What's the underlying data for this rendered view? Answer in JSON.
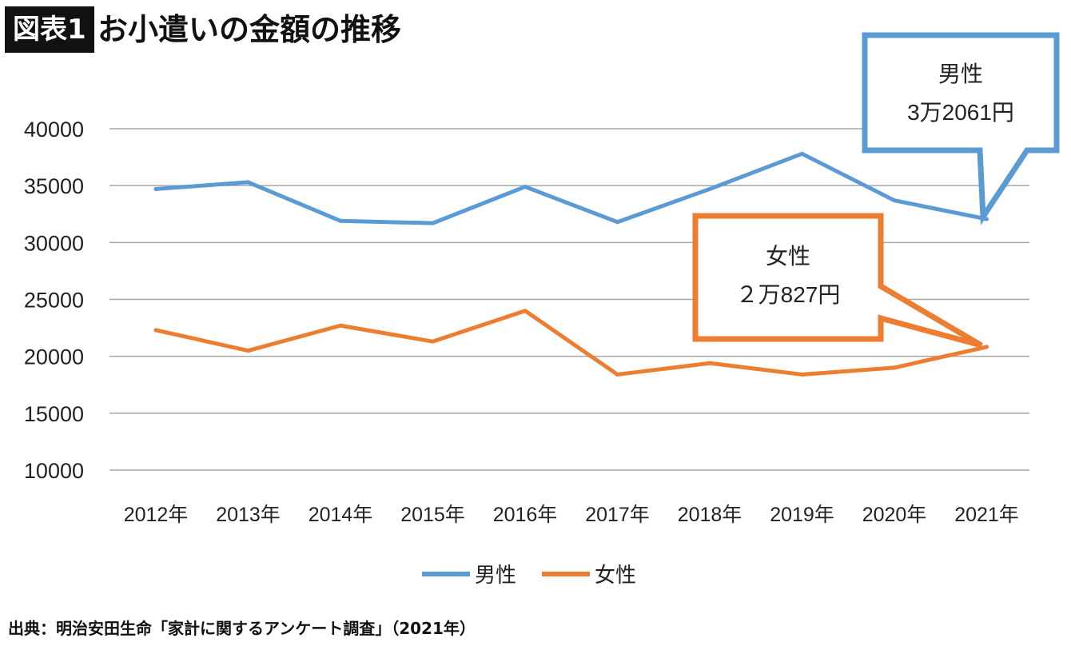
{
  "header": {
    "badge": "図表1",
    "title": "お小遣いの金額の推移"
  },
  "source": "出典：明治安田生命「家計に関するアンケート調査」（2021年）",
  "colors": {
    "male": "#5b9bd5",
    "female": "#ed7d31",
    "grid": "#a6a6a6"
  },
  "callouts": {
    "male": {
      "line1": "男性",
      "line2": "3万2061円"
    },
    "female": {
      "line1": "女性",
      "line2": "２万827円"
    }
  },
  "chart_data": {
    "type": "line",
    "categories": [
      "2012年",
      "2013年",
      "2014年",
      "2015年",
      "2016年",
      "2017年",
      "2018年",
      "2019年",
      "2020年",
      "2021年"
    ],
    "series": [
      {
        "name": "男性",
        "values": [
          34700,
          35300,
          31900,
          31700,
          34900,
          31800,
          34700,
          37800,
          33700,
          32061
        ]
      },
      {
        "name": "女性",
        "values": [
          22300,
          20500,
          22700,
          21300,
          24000,
          18400,
          19400,
          18400,
          19000,
          20827
        ]
      }
    ],
    "ylim": [
      10000,
      40000
    ],
    "yticks": [
      "10000",
      "15000",
      "20000",
      "25000",
      "30000",
      "35000",
      "40000"
    ],
    "grid": true,
    "legend": "bottom"
  }
}
